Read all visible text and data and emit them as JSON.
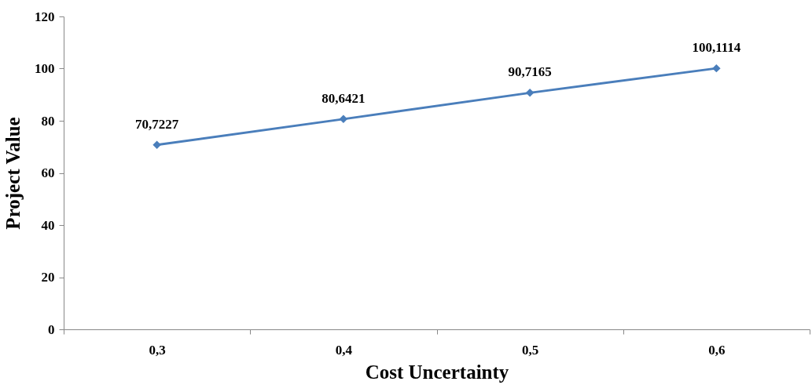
{
  "chart_data": {
    "type": "line",
    "xlabel": "Cost Uncertainty",
    "ylabel": "Project Value",
    "categories": [
      "0,3",
      "0,4",
      "0,5",
      "0,6"
    ],
    "series": [
      {
        "color": "#4a7ebb",
        "values": [
          70.7227,
          80.6421,
          90.7165,
          100.1114
        ],
        "value_labels": [
          "70,7227",
          "80,6421",
          "90,7165",
          "100,1114"
        ]
      }
    ],
    "ylim": [
      0,
      120
    ],
    "yticks": [
      0,
      20,
      40,
      60,
      80,
      100,
      120
    ],
    "marker": "diamond",
    "grid": false
  }
}
